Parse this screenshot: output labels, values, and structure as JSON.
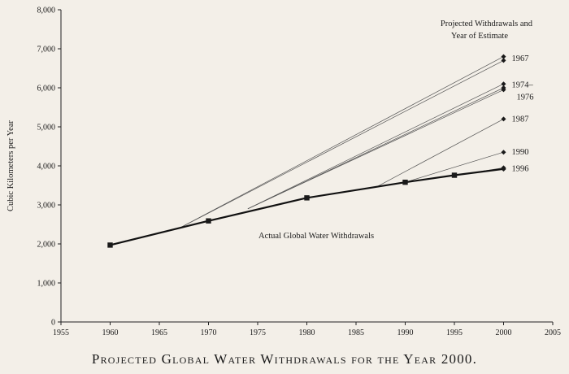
{
  "caption": "Projected Global Water Withdrawals for the Year 2000.",
  "chart_data": {
    "type": "line",
    "title": "Projected Global Water Withdrawals for the Year 2000.",
    "xlabel": "",
    "ylabel": "Cubic Kilometers per Year",
    "xlim": [
      1955,
      2005
    ],
    "ylim": [
      0,
      8000
    ],
    "x_ticks": [
      1955,
      1960,
      1965,
      1970,
      1975,
      1980,
      1985,
      1990,
      1995,
      2000,
      2005
    ],
    "y_ticks": [
      0,
      1000,
      2000,
      3000,
      4000,
      5000,
      6000,
      7000,
      8000
    ],
    "y_tick_labels": [
      "0",
      "1,000",
      "2,000",
      "3,000",
      "4,000",
      "5,000",
      "6,000",
      "7,000",
      "8,000"
    ],
    "grid": false,
    "series": [
      {
        "name": "Actual Global Water Withdrawals",
        "x": [
          1960,
          1970,
          1980,
          1990,
          1995,
          2000
        ],
        "y": [
          1970,
          2590,
          3180,
          3580,
          3760,
          3920
        ]
      }
    ],
    "projections": [
      {
        "label": "1967",
        "x": [
          1967,
          2000
        ],
        "y": [
          2400,
          6800
        ]
      },
      {
        "label": "1967",
        "x": [
          1967,
          2000
        ],
        "y": [
          2400,
          6700
        ]
      },
      {
        "label": "1974–\n1976",
        "x": [
          1974,
          2000
        ],
        "y": [
          2900,
          6100
        ]
      },
      {
        "label": "",
        "x": [
          1974,
          2000
        ],
        "y": [
          2900,
          6000
        ]
      },
      {
        "label": "",
        "x": [
          1974,
          2000
        ],
        "y": [
          2900,
          5950
        ]
      },
      {
        "label": "1987",
        "x": [
          1987,
          2000
        ],
        "y": [
          3450,
          5200
        ]
      },
      {
        "label": "1990",
        "x": [
          1990,
          2000
        ],
        "y": [
          3580,
          4350
        ]
      },
      {
        "label": "1996",
        "x": [
          1996,
          2000
        ],
        "y": [
          3790,
          3950
        ]
      }
    ],
    "annotations": {
      "legend_title_line1": "Projected Withdrawals and",
      "legend_title_line2": "Year of Estimate",
      "actual_label": "Actual Global Water Withdrawals",
      "label_1967": "1967",
      "label_1974_line1": "1974–",
      "label_1974_line2": "1976",
      "label_1987": "1987",
      "label_1990": "1990",
      "label_1996": "1996"
    }
  }
}
